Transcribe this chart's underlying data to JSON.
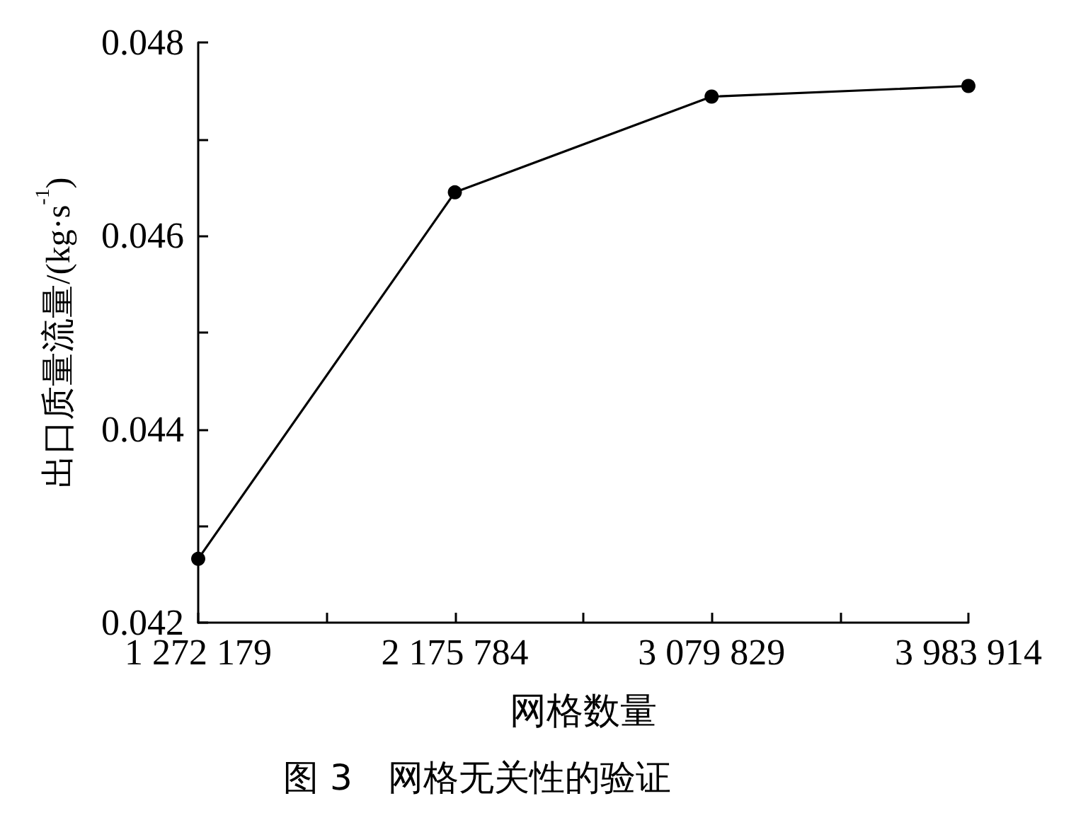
{
  "chart_data": {
    "type": "line",
    "title": "图 3　网格无关性的验证",
    "xlabel": "网格数量",
    "ylabel": "出口质量流量/(kg·s$^{-1}$)",
    "x": [
      1272179,
      2175784,
      3079829,
      3983914
    ],
    "series": [
      {
        "color": "#000000",
        "values": [
          0.04266,
          0.04645,
          0.04744,
          0.04755
        ]
      }
    ],
    "xlim": [
      1272179,
      3983914
    ],
    "xticks": [
      {
        "value": 1272179,
        "label": "1 272 179"
      },
      {
        "value": 1724000,
        "label": null
      },
      {
        "value": 2175784,
        "label": "2 175 784"
      },
      {
        "value": 2628000,
        "label": null
      },
      {
        "value": 3079829,
        "label": "3 079 829"
      },
      {
        "value": 3532000,
        "label": null
      },
      {
        "value": 3983914,
        "label": "3 983 914"
      }
    ],
    "ylim": [
      0.042,
      0.048
    ],
    "yticks": [
      0.042,
      {
        "value": 0.043,
        "label": null
      },
      0.044,
      {
        "value": 0.045,
        "label": null
      },
      0.046,
      {
        "value": 0.047,
        "label": null
      },
      0.048
    ],
    "marker": "circle",
    "line_style": "solid"
  }
}
